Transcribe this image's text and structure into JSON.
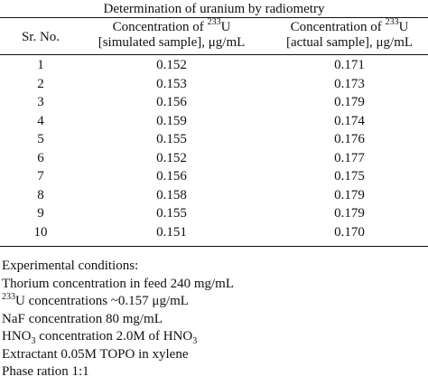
{
  "table": {
    "caption": "Determination of uranium by radiometry",
    "headers": {
      "sr_no": "Sr. No.",
      "simulated_line1_prefix": "Concentration of ",
      "simulated_line1_sup": "233",
      "simulated_line1_suffix": "U",
      "simulated_line2": "[simulated sample], μg/mL",
      "actual_line1_prefix": "Concentration of ",
      "actual_line1_sup": "233",
      "actual_line1_suffix": "U",
      "actual_line2": "[actual sample], μg/mL"
    },
    "rows": [
      {
        "no": "1",
        "simulated": "0.152",
        "actual": "0.171"
      },
      {
        "no": "2",
        "simulated": "0.153",
        "actual": "0.173"
      },
      {
        "no": "3",
        "simulated": "0.156",
        "actual": "0.179"
      },
      {
        "no": "4",
        "simulated": "0.159",
        "actual": "0.174"
      },
      {
        "no": "5",
        "simulated": "0.155",
        "actual": "0.176"
      },
      {
        "no": "6",
        "simulated": "0.152",
        "actual": "0.177"
      },
      {
        "no": "7",
        "simulated": "0.156",
        "actual": "0.175"
      },
      {
        "no": "8",
        "simulated": "0.158",
        "actual": "0.179"
      },
      {
        "no": "9",
        "simulated": "0.155",
        "actual": "0.179"
      },
      {
        "no": "10",
        "simulated": "0.151",
        "actual": "0.170"
      }
    ]
  },
  "notes": {
    "heading": "Experimental conditions:",
    "thorium": "Thorium concentration in feed 240 mg/mL",
    "uranium_sup": "233",
    "uranium_text": "U concentrations ~0.157 μg/mL",
    "naf": "NaF concentration 80 mg/mL",
    "hno3_prefix": "HNO",
    "hno3_sub": "3",
    "hno3_mid": " concentration 2.0M of HNO",
    "hno3_sub2": "3",
    "extractant": "Extractant 0.05M TOPO in xylene",
    "phase": "Phase ration 1:1"
  }
}
